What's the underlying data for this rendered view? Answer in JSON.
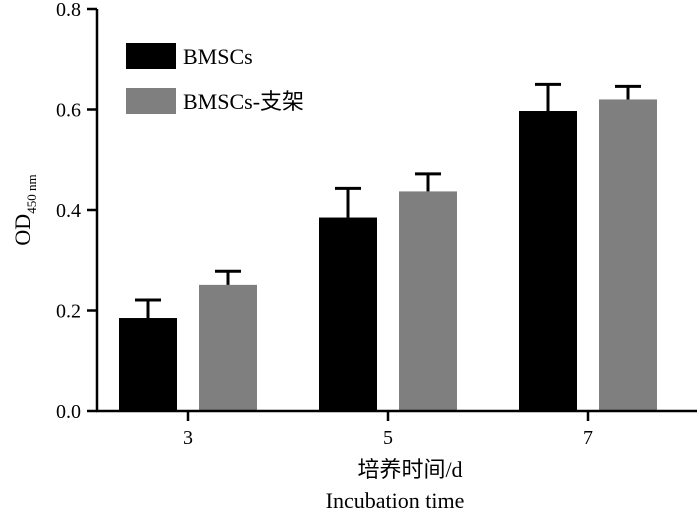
{
  "chart_data": {
    "type": "bar",
    "categories": [
      "3",
      "5",
      "7"
    ],
    "series": [
      {
        "name": "BMSCs",
        "values": [
          0.185,
          0.385,
          0.597
        ],
        "errors": [
          0.036,
          0.058,
          0.053
        ],
        "color": "#000000"
      },
      {
        "name": "BMSCs-支架",
        "values": [
          0.251,
          0.437,
          0.62
        ],
        "errors": [
          0.027,
          0.035,
          0.026
        ],
        "color": "#7f7f7f"
      }
    ],
    "ylabel_main": "OD",
    "ylabel_sub": "450 nm",
    "xlabel_cn": "培养时间/d",
    "xlabel_en": "Incubation time",
    "ylim": [
      0,
      0.8
    ],
    "yticks": [
      "0.0",
      "0.2",
      "0.4",
      "0.6",
      "0.8"
    ],
    "grid": false,
    "legend_position": "top-left"
  }
}
